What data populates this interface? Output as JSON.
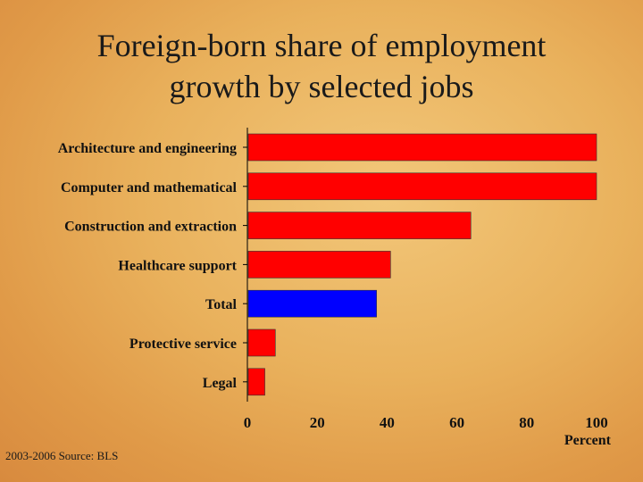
{
  "chart_data": {
    "type": "bar",
    "orientation": "horizontal",
    "title_lines": [
      "Foreign-born share of employment",
      "growth by selected jobs"
    ],
    "categories": [
      "Architecture and engineering",
      "Computer and mathematical",
      "Construction and extraction",
      "Healthcare support",
      "Total",
      "Protective service",
      "Legal"
    ],
    "values": [
      100,
      100,
      64,
      41,
      37,
      8,
      5
    ],
    "highlight_category": "Total",
    "colors": {
      "default": "#ff0000",
      "highlight": "#0000ff"
    },
    "xlabel": "Percent",
    "xlim": [
      0,
      100
    ],
    "xticks": [
      0,
      20,
      40,
      60,
      80,
      100
    ],
    "grid": false
  },
  "source_note": "2003-2006 Source: BLS"
}
